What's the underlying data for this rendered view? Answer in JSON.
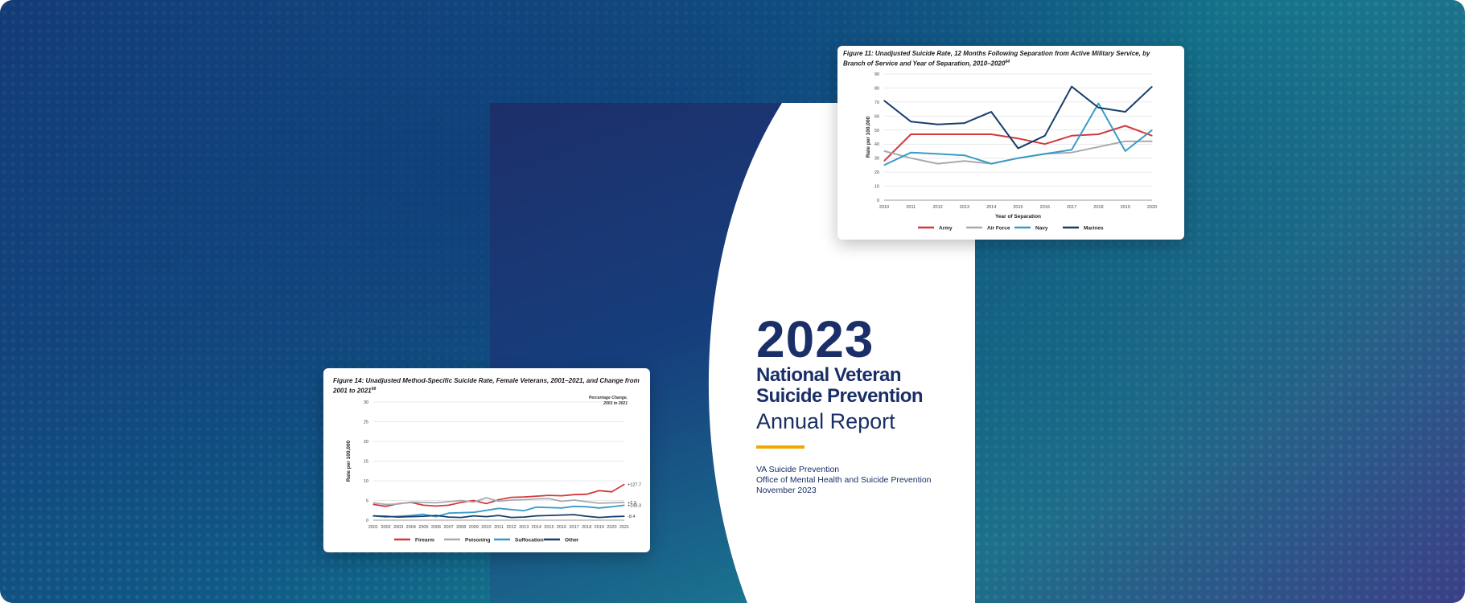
{
  "cover": {
    "year": "2023",
    "title_line1": "National Veteran",
    "title_line2": "Suicide Prevention",
    "subtitle": "Annual Report",
    "org_line1": "VA Suicide Prevention",
    "org_line2": "Office of Mental Health and Suicide Prevention",
    "org_line3": "November 2023",
    "accent": "#f2a800",
    "text_color": "#1a2e67"
  },
  "chart_data": [
    {
      "type": "line",
      "title": "Figure 11: Unadjusted Suicide Rate, 12 Months Following Separation from Active Military Service, by Branch of Service and Year of Separation, 2010–2020",
      "title_superscript": "64",
      "xlabel": "Year of Separation",
      "ylabel": "Rate per 100,000",
      "ylim": [
        0,
        90
      ],
      "yticks": [
        0,
        10,
        20,
        30,
        40,
        50,
        60,
        70,
        80,
        90
      ],
      "x": [
        "2010",
        "2011",
        "2012",
        "2013",
        "2014",
        "2015",
        "2016",
        "2017",
        "2018",
        "2019",
        "2020"
      ],
      "grid": true,
      "legend": "bottom",
      "series": [
        {
          "name": "Army",
          "color": "#d23a3f",
          "values": [
            28,
            47,
            47,
            47,
            47,
            44,
            40,
            46,
            47,
            53,
            46
          ]
        },
        {
          "name": "Air Force",
          "color": "#a8aaad",
          "values": [
            35,
            30,
            26,
            28,
            26,
            30,
            33,
            34,
            38,
            42,
            42
          ]
        },
        {
          "name": "Navy",
          "color": "#3a9bc8",
          "values": [
            25,
            34,
            33,
            32,
            26,
            30,
            33,
            36,
            69,
            35,
            50
          ]
        },
        {
          "name": "Marines",
          "color": "#153f6b",
          "values": [
            71,
            56,
            54,
            55,
            63,
            37,
            46,
            81,
            66,
            63,
            81
          ]
        }
      ]
    },
    {
      "type": "line",
      "title": "Figure 14: Unadjusted Method-Specific Suicide Rate, Female Veterans, 2001–2021, and Change from 2001 to 2021",
      "title_superscript": "69",
      "xlabel": "",
      "ylabel": "Rate per 100,000",
      "ylim": [
        0,
        30
      ],
      "yticks": [
        0,
        5,
        10,
        15,
        20,
        25,
        30
      ],
      "x": [
        "2001",
        "2002",
        "2003",
        "2004",
        "2005",
        "2006",
        "2007",
        "2008",
        "2009",
        "2010",
        "2011",
        "2012",
        "2013",
        "2014",
        "2015",
        "2016",
        "2017",
        "2018",
        "2019",
        "2020",
        "2021"
      ],
      "grid": true,
      "legend": "bottom",
      "annotation": "Percentage Change, 2001 to 2021",
      "series": [
        {
          "name": "Firearm",
          "color": "#d23a3f",
          "change_label": "+127.7",
          "values": [
            4.0,
            3.5,
            4.2,
            4.5,
            3.8,
            3.6,
            3.8,
            4.5,
            5.0,
            4.2,
            5.2,
            5.8,
            5.9,
            6.1,
            6.3,
            6.2,
            6.5,
            6.6,
            7.5,
            7.2,
            9.1
          ]
        },
        {
          "name": "Poisoning",
          "color": "#a8aaad",
          "change_label": "+2.3",
          "values": [
            4.4,
            4.0,
            4.1,
            4.6,
            4.5,
            4.4,
            4.7,
            5.0,
            4.6,
            5.7,
            4.8,
            5.1,
            5.2,
            5.4,
            5.5,
            4.8,
            5.1,
            4.7,
            4.3,
            4.4,
            4.5
          ]
        },
        {
          "name": "Suffocation",
          "color": "#3a9bc8",
          "change_label": "+249.3",
          "values": [
            1.1,
            0.8,
            1.0,
            1.2,
            1.5,
            0.9,
            1.8,
            1.9,
            2.0,
            2.5,
            3.0,
            2.7,
            2.4,
            3.3,
            3.2,
            3.1,
            3.5,
            3.4,
            3.1,
            3.4,
            3.8
          ]
        },
        {
          "name": "Other",
          "color": "#153f6b",
          "change_label": "-8.4",
          "values": [
            1.1,
            1.0,
            0.8,
            0.9,
            1.0,
            1.2,
            0.8,
            0.7,
            1.1,
            0.9,
            1.2,
            0.7,
            0.8,
            1.1,
            1.2,
            1.3,
            1.4,
            1.0,
            0.7,
            0.9,
            1.0
          ]
        }
      ]
    }
  ]
}
